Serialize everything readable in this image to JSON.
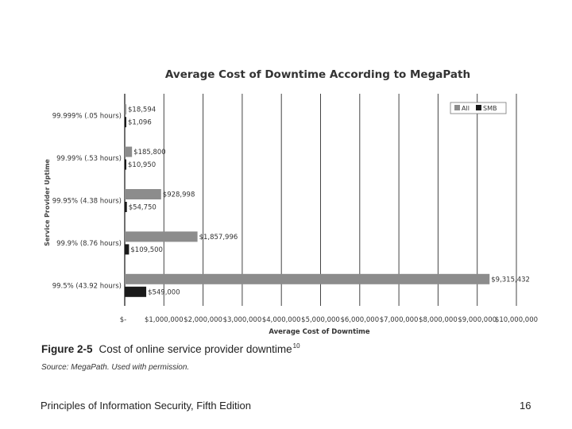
{
  "chart_data": {
    "type": "bar",
    "orientation": "horizontal",
    "title": "Average Cost of Downtime According to MegaPath",
    "xlabel": "Average Cost of Downtime",
    "ylabel": "Service Provider Uptime",
    "xlim": [
      0,
      10000000
    ],
    "x_ticks": [
      "$-",
      "$1,000,000",
      "$2,000,000",
      "$3,000,000",
      "$4,000,000",
      "$5,000,000",
      "$6,000,000",
      "$7,000,000",
      "$8,000,000",
      "$9,000,000",
      "$10,000,000"
    ],
    "grid": "vertical",
    "legend_position": "top-right",
    "categories": [
      "99.999% (.05 hours)",
      "99.99% (.53 hours)",
      "99.95% (4.38 hours)",
      "99.9% (8.76 hours)",
      "99.5% (43.92 hours)"
    ],
    "series": [
      {
        "name": "All",
        "color": "#8c8c8c",
        "values": [
          18594,
          185800,
          928998,
          1857996,
          9315432
        ],
        "labels": [
          "$18,594",
          "$185,800",
          "$928,998",
          "$1,857,996",
          "$9,315,432"
        ]
      },
      {
        "name": "SMB",
        "color": "#1a1a1a",
        "values": [
          1096,
          10950,
          54750,
          109500,
          549000
        ],
        "labels": [
          "$1,096",
          "$10,950",
          "$54,750",
          "$109,500",
          "$549,000"
        ]
      }
    ]
  },
  "figure": {
    "number": "Figure 2-5",
    "caption": "Cost of online service provider downtime",
    "footnote": "10",
    "source": "Source: MegaPath. Used with permission."
  },
  "footer": {
    "book_title": "Principles of Information Security, Fifth Edition",
    "page_number": "16"
  }
}
